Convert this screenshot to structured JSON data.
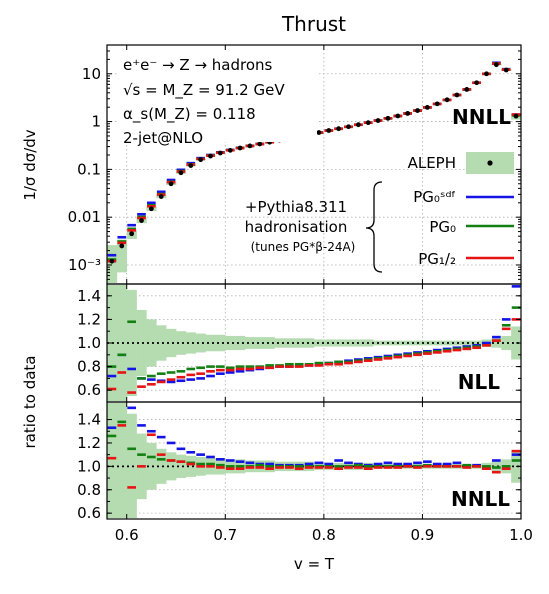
{
  "figure_title": "Thrust",
  "annotations": {
    "process": "e⁺e⁻ → Z → hadrons",
    "sqrt_s": "√s = M_Z = 91.2 GeV",
    "alpha_s": "α_s(M_Z) = 0.118",
    "order": "2-jet@NLO",
    "top_label": "NNLL",
    "pythia_line1": "+Pythia8.311",
    "pythia_line2": "hadronisation",
    "pythia_line3": "(tunes PG*β-24A)",
    "ratio1_label": "NLL",
    "ratio2_label": "NNLL"
  },
  "legend": {
    "data_label": "ALEPH",
    "pg0sdf": "PG₀ˢᵈᶠ",
    "pg0": "PG₀",
    "pg12": "PG₁/₂"
  },
  "colors": {
    "data_band": "#b5dcb0",
    "pg0sdf": "#1414e6",
    "pg0": "#128012",
    "pg12": "#e61414"
  },
  "chart_data": [
    {
      "type": "line",
      "panel": "distribution",
      "title": "Thrust",
      "xlabel": "v = T",
      "ylabel": "1/σ dσ/dv",
      "yscale": "log",
      "xlim": [
        0.58,
        1.0
      ],
      "ylim": [
        0.0004,
        40
      ],
      "x_ticks": [
        "0.6",
        "0.7",
        "0.8",
        "0.9",
        "1.0"
      ],
      "y_ticks": [
        "10⁻³",
        "0.01",
        "0.1",
        "1",
        "10"
      ],
      "grid": true,
      "bins": [
        0.585,
        0.595,
        0.605,
        0.615,
        0.625,
        0.635,
        0.645,
        0.655,
        0.665,
        0.675,
        0.685,
        0.695,
        0.705,
        0.715,
        0.725,
        0.735,
        0.745,
        0.755,
        0.765,
        0.775,
        0.785,
        0.795,
        0.805,
        0.815,
        0.825,
        0.835,
        0.845,
        0.855,
        0.865,
        0.875,
        0.885,
        0.895,
        0.905,
        0.915,
        0.925,
        0.935,
        0.945,
        0.955,
        0.965,
        0.975,
        0.985,
        0.995
      ],
      "data": {
        "name": "ALEPH",
        "values": [
          0.0012,
          0.0025,
          0.0045,
          0.0085,
          0.015,
          0.027,
          0.05,
          0.085,
          0.12,
          0.16,
          0.19,
          0.22,
          0.25,
          0.28,
          0.31,
          0.34,
          0.37,
          0.41,
          0.45,
          0.49,
          0.54,
          0.59,
          0.65,
          0.71,
          0.78,
          0.86,
          0.95,
          1.05,
          1.17,
          1.31,
          1.48,
          1.7,
          1.98,
          2.35,
          2.85,
          3.6,
          4.7,
          6.5,
          10.0,
          15.5,
          12.0,
          1.3
        ],
        "band_low": [
          0.0004,
          0.0007,
          0.0035,
          0.0075,
          0.0135,
          0.025,
          0.047,
          0.081,
          0.115,
          0.155,
          0.185,
          0.215,
          0.245,
          0.275,
          0.305,
          0.335,
          0.365,
          0.405,
          0.445,
          0.485,
          0.535,
          0.585,
          0.645,
          0.705,
          0.775,
          0.855,
          0.945,
          1.04,
          1.16,
          1.3,
          1.47,
          1.69,
          1.96,
          2.33,
          2.82,
          3.56,
          4.64,
          6.4,
          9.8,
          15.0,
          11.5,
          1.1
        ],
        "band_high": [
          0.0026,
          0.0034,
          0.0055,
          0.0095,
          0.0165,
          0.029,
          0.053,
          0.089,
          0.125,
          0.165,
          0.195,
          0.225,
          0.255,
          0.285,
          0.315,
          0.345,
          0.375,
          0.415,
          0.455,
          0.495,
          0.545,
          0.595,
          0.655,
          0.715,
          0.785,
          0.865,
          0.955,
          1.06,
          1.18,
          1.32,
          1.49,
          1.71,
          2.0,
          2.37,
          2.88,
          3.64,
          4.76,
          6.6,
          10.2,
          16.0,
          12.5,
          1.5
        ]
      },
      "series": [
        {
          "name": "PG₀ˢᵈᶠ",
          "values": [
            0.0016,
            0.0038,
            0.0068,
            0.0115,
            0.02,
            0.034,
            0.06,
            0.098,
            0.135,
            0.172,
            0.2,
            0.228,
            0.255,
            0.283,
            0.312,
            0.341,
            0.372,
            0.41,
            0.448,
            0.489,
            0.538,
            0.59,
            0.65,
            0.71,
            0.78,
            0.86,
            0.95,
            1.05,
            1.17,
            1.31,
            1.48,
            1.7,
            1.98,
            2.35,
            2.85,
            3.6,
            4.7,
            6.5,
            10.0,
            17.0,
            12.5,
            1.4
          ]
        },
        {
          "name": "PG₀",
          "values": [
            0.0013,
            0.0031,
            0.0057,
            0.0101,
            0.0177,
            0.0305,
            0.055,
            0.092,
            0.128,
            0.166,
            0.195,
            0.224,
            0.252,
            0.28,
            0.31,
            0.339,
            0.37,
            0.408,
            0.447,
            0.488,
            0.537,
            0.589,
            0.648,
            0.708,
            0.779,
            0.859,
            0.949,
            1.049,
            1.169,
            1.309,
            1.479,
            1.699,
            1.979,
            2.349,
            2.849,
            3.599,
            4.699,
            6.499,
            9.99,
            16.5,
            12.3,
            1.35
          ]
        },
        {
          "name": "PG₁/₂",
          "values": [
            0.0012,
            0.0029,
            0.0053,
            0.0096,
            0.0169,
            0.0296,
            0.054,
            0.09,
            0.126,
            0.165,
            0.194,
            0.223,
            0.251,
            0.279,
            0.309,
            0.338,
            0.369,
            0.407,
            0.446,
            0.487,
            0.536,
            0.588,
            0.647,
            0.707,
            0.778,
            0.858,
            0.948,
            1.048,
            1.168,
            1.308,
            1.478,
            1.698,
            1.978,
            2.348,
            2.848,
            3.598,
            4.698,
            6.498,
            9.98,
            16.3,
            12.2,
            1.4
          ]
        }
      ]
    },
    {
      "type": "line",
      "panel": "ratio-nll",
      "ylabel": "ratio to data",
      "label": "NLL",
      "xlim": [
        0.58,
        1.0
      ],
      "ylim": [
        0.5,
        1.5
      ],
      "y_ticks": [
        "0.6",
        "0.8",
        "1.0",
        "1.2",
        "1.4"
      ],
      "reference_line": 1.0,
      "band_low": [
        0.3,
        0.3,
        0.55,
        0.72,
        0.8,
        0.85,
        0.88,
        0.9,
        0.91,
        0.92,
        0.93,
        0.93,
        0.94,
        0.94,
        0.95,
        0.95,
        0.95,
        0.96,
        0.96,
        0.96,
        0.96,
        0.97,
        0.97,
        0.97,
        0.97,
        0.97,
        0.97,
        0.98,
        0.98,
        0.98,
        0.98,
        0.98,
        0.98,
        0.98,
        0.98,
        0.98,
        0.98,
        0.98,
        0.97,
        0.96,
        0.94,
        0.86
      ],
      "band_high": [
        1.7,
        1.7,
        1.45,
        1.28,
        1.2,
        1.15,
        1.12,
        1.1,
        1.09,
        1.08,
        1.07,
        1.07,
        1.06,
        1.06,
        1.05,
        1.05,
        1.05,
        1.04,
        1.04,
        1.04,
        1.04,
        1.03,
        1.03,
        1.03,
        1.03,
        1.03,
        1.03,
        1.02,
        1.02,
        1.02,
        1.02,
        1.02,
        1.02,
        1.02,
        1.02,
        1.02,
        1.02,
        1.02,
        1.03,
        1.04,
        1.06,
        1.14
      ],
      "series": [
        {
          "name": "PG₀ˢᵈᶠ",
          "values": [
            0.72,
            0.9,
            0.78,
            0.7,
            0.69,
            0.68,
            0.67,
            0.68,
            0.69,
            0.7,
            0.72,
            0.74,
            0.75,
            0.76,
            0.77,
            0.78,
            0.79,
            0.8,
            0.8,
            0.81,
            0.81,
            0.82,
            0.83,
            0.84,
            0.85,
            0.86,
            0.87,
            0.88,
            0.89,
            0.9,
            0.91,
            0.92,
            0.93,
            0.94,
            0.95,
            0.96,
            0.97,
            0.98,
            1.0,
            1.05,
            1.2,
            1.48
          ]
        },
        {
          "name": "PG₀",
          "values": [
            0.8,
            0.9,
            1.18,
            0.7,
            0.72,
            0.74,
            0.75,
            0.76,
            0.78,
            0.79,
            0.8,
            0.8,
            0.79,
            0.8,
            0.8,
            0.8,
            0.81,
            0.81,
            0.82,
            0.82,
            0.82,
            0.83,
            0.83,
            0.84,
            0.84,
            0.85,
            0.86,
            0.87,
            0.88,
            0.89,
            0.9,
            0.91,
            0.92,
            0.93,
            0.94,
            0.95,
            0.96,
            0.97,
            0.98,
            1.02,
            1.15,
            1.3
          ]
        },
        {
          "name": "PG₁/₂",
          "values": [
            0.61,
            0.75,
            0.58,
            0.63,
            0.65,
            0.67,
            0.69,
            0.71,
            0.73,
            0.74,
            0.76,
            0.77,
            0.77,
            0.78,
            0.78,
            0.79,
            0.79,
            0.8,
            0.8,
            0.8,
            0.81,
            0.81,
            0.82,
            0.82,
            0.83,
            0.84,
            0.85,
            0.86,
            0.87,
            0.88,
            0.89,
            0.9,
            0.91,
            0.92,
            0.93,
            0.94,
            0.95,
            0.96,
            0.98,
            1.02,
            1.12,
            1.2
          ]
        }
      ]
    },
    {
      "type": "line",
      "panel": "ratio-nnll",
      "label": "NNLL",
      "xlabel": "v = T",
      "xlim": [
        0.58,
        1.0
      ],
      "ylim": [
        0.55,
        1.55
      ],
      "y_ticks": [
        "0.6",
        "0.8",
        "1.0",
        "1.2",
        "1.4"
      ],
      "reference_line": 1.0,
      "band_low": [
        0.3,
        0.3,
        0.55,
        0.72,
        0.8,
        0.85,
        0.88,
        0.9,
        0.91,
        0.92,
        0.93,
        0.93,
        0.94,
        0.94,
        0.95,
        0.95,
        0.95,
        0.96,
        0.96,
        0.96,
        0.96,
        0.97,
        0.97,
        0.97,
        0.97,
        0.97,
        0.97,
        0.98,
        0.98,
        0.98,
        0.98,
        0.98,
        0.98,
        0.98,
        0.98,
        0.98,
        0.98,
        0.98,
        0.97,
        0.96,
        0.94,
        0.86
      ],
      "band_high": [
        1.7,
        1.7,
        1.45,
        1.28,
        1.2,
        1.15,
        1.12,
        1.1,
        1.09,
        1.08,
        1.07,
        1.07,
        1.06,
        1.06,
        1.05,
        1.05,
        1.05,
        1.04,
        1.04,
        1.04,
        1.04,
        1.03,
        1.03,
        1.03,
        1.03,
        1.03,
        1.03,
        1.02,
        1.02,
        1.02,
        1.02,
        1.02,
        1.02,
        1.02,
        1.02,
        1.02,
        1.02,
        1.02,
        1.03,
        1.04,
        1.06,
        1.14
      ],
      "series": [
        {
          "name": "PG₀ˢᵈᶠ",
          "values": [
            1.33,
            1.55,
            1.5,
            1.35,
            1.3,
            1.25,
            1.2,
            1.15,
            1.12,
            1.1,
            1.08,
            1.06,
            1.05,
            1.04,
            1.03,
            1.02,
            1.02,
            1.01,
            1.01,
            1.01,
            1.02,
            1.03,
            1.02,
            1.05,
            1.03,
            1.02,
            1.01,
            1.02,
            1.03,
            1.02,
            1.02,
            1.03,
            1.04,
            1.02,
            1.02,
            1.03,
            1.0,
            1.01,
            0.98,
            1.05,
            0.98,
            1.1
          ]
        },
        {
          "name": "PG₀",
          "values": [
            1.26,
            1.38,
            1.15,
            1.1,
            1.08,
            1.06,
            1.05,
            1.04,
            1.03,
            1.02,
            1.02,
            1.01,
            1.0,
            1.0,
            1.0,
            1.01,
            1.0,
            1.0,
            1.0,
            1.0,
            1.0,
            1.0,
            1.0,
            1.0,
            1.0,
            1.01,
            1.0,
            1.0,
            1.0,
            1.0,
            1.0,
            1.0,
            1.01,
            1.0,
            1.0,
            1.0,
            1.01,
            1.0,
            1.0,
            0.99,
            1.0,
            1.05
          ]
        },
        {
          "name": "PG₁/₂",
          "values": [
            1.07,
            1.35,
            0.82,
            1.0,
            1.27,
            1.1,
            1.05,
            1.04,
            1.02,
            1.0,
            1.0,
            0.99,
            0.98,
            0.98,
            0.99,
            0.99,
            0.98,
            0.99,
            0.99,
            0.98,
            0.99,
            0.99,
            0.99,
            0.98,
            0.99,
            0.99,
            0.98,
            0.99,
            0.99,
            0.99,
            1.0,
            0.99,
            1.0,
            1.0,
            1.0,
            1.0,
            0.99,
            1.0,
            0.98,
            0.95,
            0.98,
            1.13
          ]
        }
      ]
    }
  ]
}
